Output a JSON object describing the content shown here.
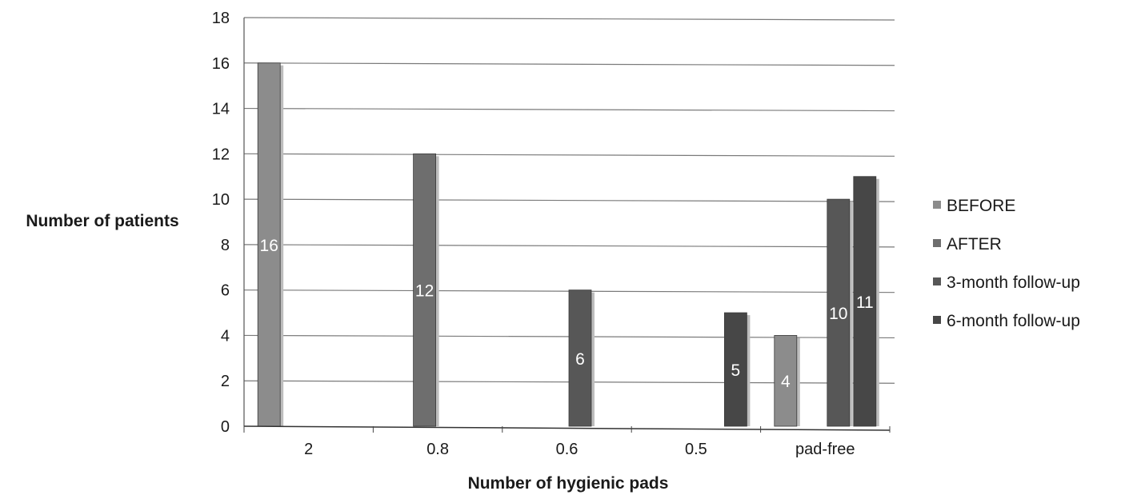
{
  "chart_data": {
    "type": "bar",
    "title": "",
    "xlabel": "Number of hygienic pads",
    "ylabel": "Number of patients",
    "categories": [
      "2",
      "0.8",
      "0.6",
      "0.5",
      "pad-free"
    ],
    "ylim": [
      0,
      18
    ],
    "yticks": [
      "0",
      "2",
      "4",
      "6",
      "8",
      "10",
      "12",
      "14",
      "16",
      "18"
    ],
    "grid": true,
    "legend_position": "right",
    "series": [
      {
        "name": "BEFORE",
        "color": "#8c8c8c",
        "values": [
          16,
          null,
          null,
          null,
          4
        ]
      },
      {
        "name": "AFTER",
        "color": "#6e6e6e",
        "values": [
          null,
          12,
          null,
          null,
          null
        ]
      },
      {
        "name": "3-month follow-up",
        "color": "#575757",
        "values": [
          null,
          null,
          6,
          null,
          10
        ]
      },
      {
        "name": "6-month follow-up",
        "color": "#474747",
        "values": [
          null,
          null,
          null,
          5,
          11
        ]
      }
    ],
    "data_labels": [
      {
        "series": 0,
        "category": 0,
        "text": "16"
      },
      {
        "series": 1,
        "category": 1,
        "text": "12"
      },
      {
        "series": 2,
        "category": 2,
        "text": "6"
      },
      {
        "series": 3,
        "category": 3,
        "text": "5"
      },
      {
        "series": 0,
        "category": 4,
        "text": "4"
      },
      {
        "series": 2,
        "category": 4,
        "text": "10"
      },
      {
        "series": 3,
        "category": 4,
        "text": "11"
      }
    ]
  }
}
